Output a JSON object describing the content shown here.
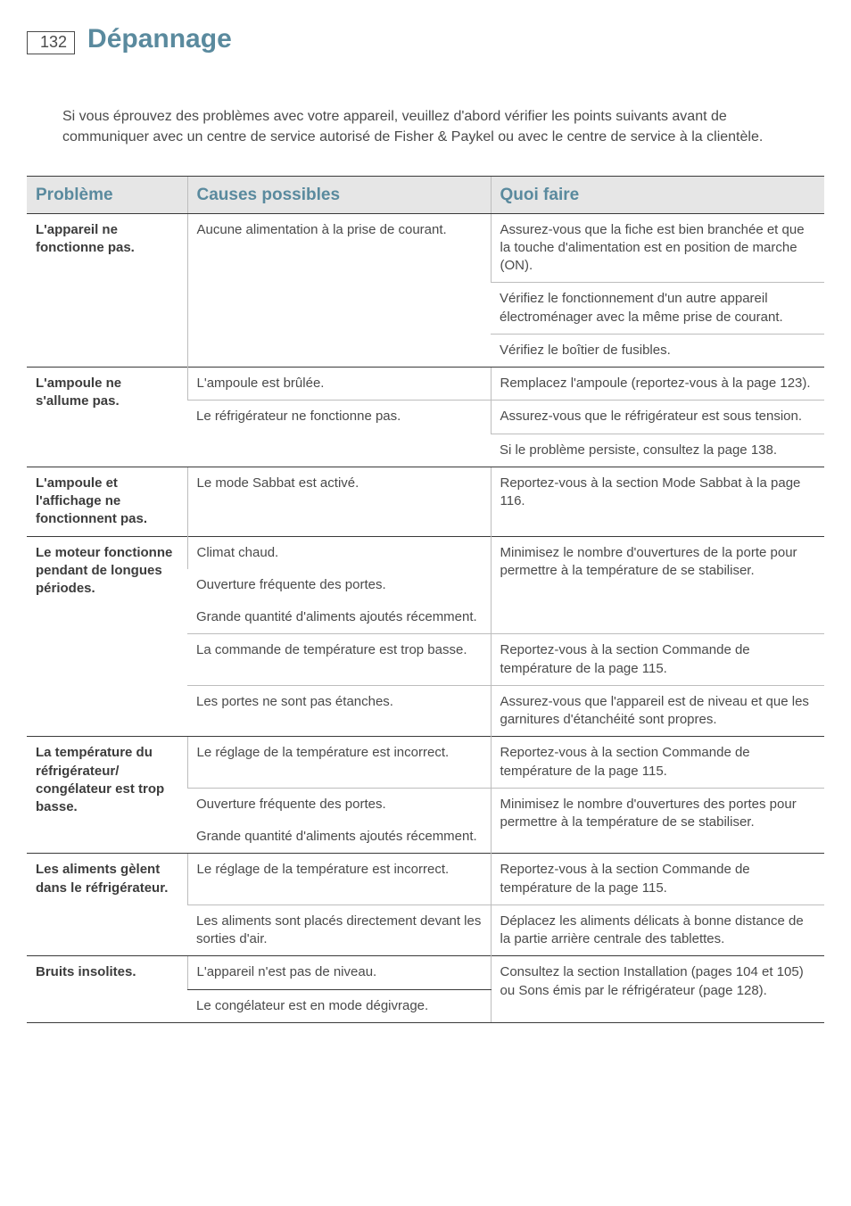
{
  "page_number": "132",
  "title": "Dépannage",
  "intro": "Si vous éprouvez des problèmes avec votre appareil, veuillez d'abord vérifier les points suivants avant de communiquer avec un centre de service autorisé de Fisher & Paykel ou avec le centre de service à la clientèle.",
  "columns": {
    "problem": "Problème",
    "cause": "Causes possibles",
    "fix": "Quoi faire"
  },
  "rows": [
    {
      "problem": "L'appareil ne fonctionne pas.",
      "cause": "Aucune alimentation à la prise de courant.",
      "fix": "Assurez-vous que la fiche est bien branchée et que la touche d'alimentation est en position de marche (ON).",
      "problem_rowspan": 3,
      "cause_rowspan": 3,
      "top": "none"
    },
    {
      "fix": "Vérifiez le fonctionnement d'un autre appareil électroménager avec la même prise de courant.",
      "top": "thin"
    },
    {
      "fix": "Vérifiez le boîtier de fusibles.",
      "top": "thin"
    },
    {
      "problem": "L'ampoule ne s'allume pas.",
      "cause": "L'ampoule est brûlée.",
      "fix": "Remplacez l'ampoule (reportez-vous à la page 123).",
      "problem_rowspan": 3,
      "top": "thick"
    },
    {
      "cause": "Le réfrigérateur ne fonctionne pas.",
      "cause_rowspan": 2,
      "fix": "Assurez-vous que le réfrigérateur est sous tension.",
      "top": "thin"
    },
    {
      "fix": "Si le problème persiste, consultez la page 138.",
      "top": "thin"
    },
    {
      "problem": "L'ampoule et l'affichage ne fonctionnent pas.",
      "cause": "Le mode Sabbat est activé.",
      "fix": "Reportez-vous à la section Mode Sabbat à la page 116.",
      "top": "thick"
    },
    {
      "problem": "Le moteur fonctionne pendant de longues périodes.",
      "cause": "Climat chaud.",
      "fix": "Minimisez le nombre d'ouvertures de la porte pour permettre à la température de se stabiliser.",
      "problem_rowspan": 5,
      "fix_rowspan": 3,
      "top": "thick"
    },
    {
      "cause": "Ouverture fréquente des portes.",
      "top": "none"
    },
    {
      "cause": "Grande quantité d'aliments ajoutés récemment.",
      "top": "none"
    },
    {
      "cause": "La commande de température est trop basse.",
      "fix": "Reportez-vous à la section Commande de température de la page 115.",
      "top": "thin"
    },
    {
      "cause": "Les portes ne sont pas étanches.",
      "fix": "Assurez-vous que l'appareil est de niveau et que les garnitures d'étanchéité sont propres.",
      "top": "thin"
    },
    {
      "problem": "La température du réfrigérateur/ congélateur est trop basse.",
      "cause": "Le réglage de la température est incorrect.",
      "fix": "Reportez-vous à la section Commande de température de la page 115.",
      "problem_rowspan": 3,
      "top": "thick"
    },
    {
      "cause": "Ouverture fréquente des portes.",
      "fix": "Minimisez le nombre d'ouvertures des portes pour permettre à la température de se stabiliser.",
      "fix_rowspan": 2,
      "top": "thin"
    },
    {
      "cause": "Grande quantité d'aliments ajoutés récemment.",
      "top": "none"
    },
    {
      "problem": "Les aliments gèlent dans le réfrigérateur.",
      "cause": "Le réglage de la température est incorrect.",
      "fix": "Reportez-vous à la section Commande de température de la page 115.",
      "problem_rowspan": 2,
      "top": "thick"
    },
    {
      "cause": "Les aliments sont placés directement devant les sorties d'air.",
      "fix": "Déplacez les aliments délicats à bonne distance de la partie arrière centrale des tablettes.",
      "top": "thin"
    },
    {
      "problem": "Bruits insolites.",
      "cause": "L'appareil n'est pas de niveau.",
      "fix": "Consultez la section Installation (pages 104 et 105) ou Sons émis par le réfrigérateur (page 128).",
      "problem_rowspan": 2,
      "fix_rowspan": 2,
      "top": "thick",
      "last": true
    },
    {
      "cause": "Le congélateur est en mode dégivrage.",
      "top": "none",
      "last": true
    }
  ],
  "colors": {
    "accent": "#5a8a9e",
    "header_bg": "#e6e6e6",
    "text": "#4a4a4a",
    "rule_thick": "#3a3a3a",
    "rule_thin": "#bdbdbd"
  }
}
